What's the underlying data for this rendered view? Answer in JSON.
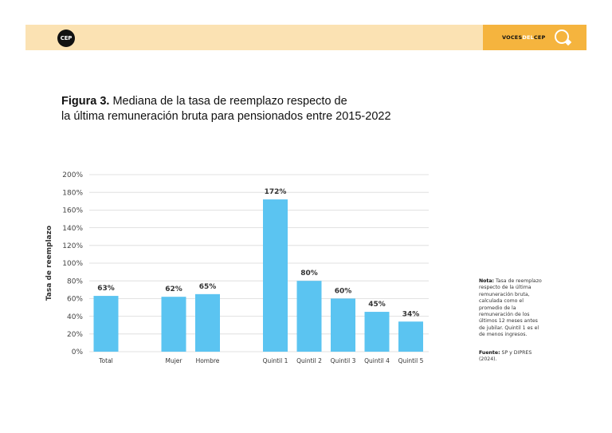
{
  "header": {
    "logo_text": "CEP",
    "brand_prefix": "VOCES",
    "brand_mid": "DEL",
    "brand_suffix": "CEP"
  },
  "figure": {
    "label": "Figura 3.",
    "title_line1": " Mediana de la tasa de reemplazo respecto de",
    "title_line2": "la última remuneración bruta para pensionados entre 2015-2022"
  },
  "note": {
    "label": "Nota:",
    "text": " Tasa de reemplazo respecto de la última remuneración bruta, calculada como el promedio de la remuneración de los últimos 12 meses antes de jubilar. Quintil 1 es el de menos ingresos."
  },
  "source": {
    "label": "Fuente:",
    "text": " SP y DIPRES (2024)."
  },
  "colors": {
    "bar": "#5bc4f1",
    "header_bg": "#fbe2b3",
    "header_accent": "#f5b43e",
    "grid": "#d9d9d9"
  },
  "chart_data": {
    "type": "bar",
    "ylabel": "Tasa de reemplazo",
    "ylim": [
      0,
      200
    ],
    "yticks": [
      0,
      20,
      40,
      60,
      80,
      100,
      120,
      140,
      160,
      180,
      200
    ],
    "ytick_suffix": "%",
    "grid": true,
    "categories": [
      "Total",
      "Mujer",
      "Hombre",
      "Quintil 1",
      "Quintil 2",
      "Quintil 3",
      "Quintil 4",
      "Quintil 5"
    ],
    "values": [
      63,
      62,
      65,
      172,
      80,
      60,
      45,
      34
    ],
    "data_labels": [
      "63%",
      "62%",
      "65%",
      "172%",
      "80%",
      "60%",
      "45%",
      "34%"
    ]
  }
}
